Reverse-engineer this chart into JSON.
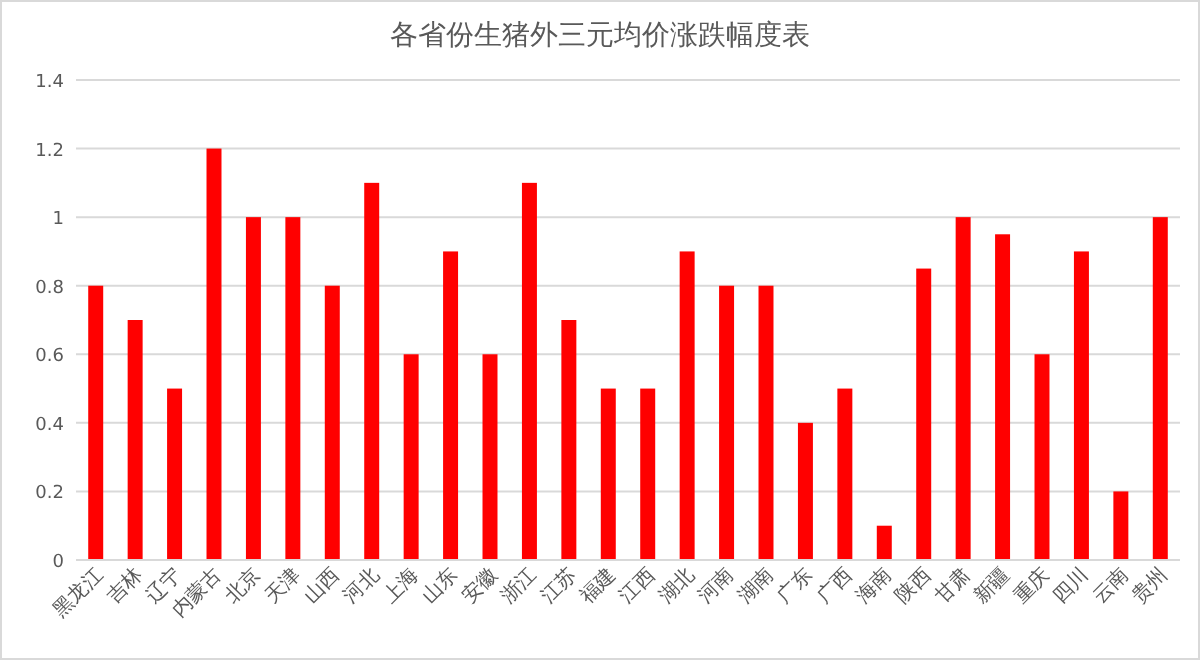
{
  "chart_data": {
    "type": "bar",
    "title": "各省份生猪外三元均价涨跌幅度表",
    "categories": [
      "黑龙江",
      "吉林",
      "辽宁",
      "内蒙古",
      "北京",
      "天津",
      "山西",
      "河北",
      "上海",
      "山东",
      "安徽",
      "浙江",
      "江苏",
      "福建",
      "江西",
      "湖北",
      "河南",
      "湖南",
      "广东",
      "广西",
      "海南",
      "陕西",
      "甘肃",
      "新疆",
      "重庆",
      "四川",
      "云南",
      "贵州"
    ],
    "values": [
      0.8,
      0.7,
      0.5,
      1.2,
      1,
      1,
      0.8,
      1.1,
      0.6,
      0.9,
      0.6,
      1.1,
      0.7,
      0.5,
      0.5,
      0.9,
      0.8,
      0.8,
      0.4,
      0.5,
      0.1,
      0.85,
      1,
      0.95,
      0.6,
      0.9,
      0.2,
      1
    ],
    "color": "#ff0000",
    "ylim": [
      0,
      1.4
    ],
    "yticks": [
      0,
      0.2,
      0.4,
      0.6,
      0.8,
      1,
      1.2,
      1.4
    ],
    "grid": "y"
  }
}
